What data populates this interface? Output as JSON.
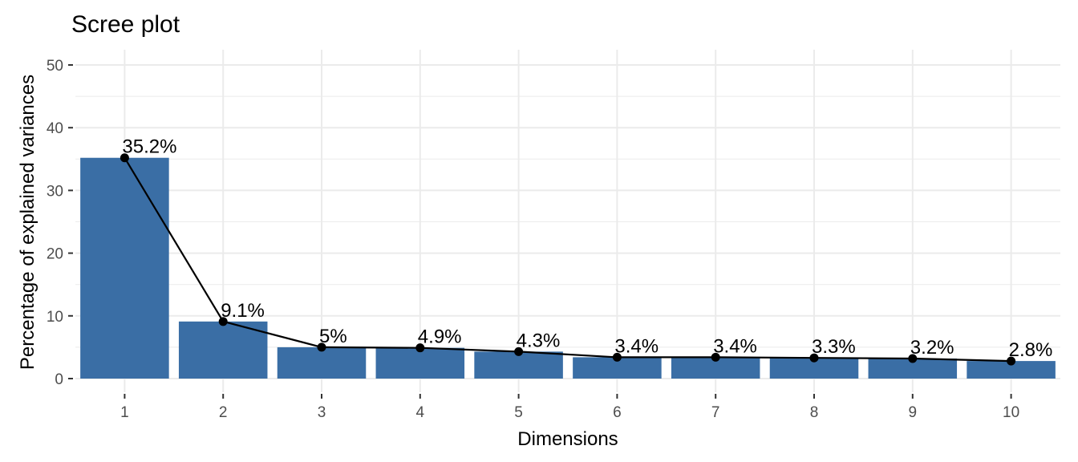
{
  "chart_data": {
    "type": "bar",
    "title": "Scree plot",
    "xlabel": "Dimensions",
    "ylabel": "Percentage of explained variances",
    "categories": [
      "1",
      "2",
      "3",
      "4",
      "5",
      "6",
      "7",
      "8",
      "9",
      "10"
    ],
    "values": [
      35.2,
      9.1,
      5,
      4.9,
      4.3,
      3.4,
      3.4,
      3.3,
      3.2,
      2.8
    ],
    "labels": [
      "35.2%",
      "9.1%",
      "5%",
      "4.9%",
      "4.3%",
      "3.4%",
      "3.4%",
      "3.3%",
      "3.2%",
      "2.8%"
    ],
    "ylim": [
      0,
      50
    ],
    "yticks": [
      "0",
      "10",
      "20",
      "30",
      "40",
      "50"
    ],
    "line_overlay": true,
    "grid": true,
    "bar_color": "#3a6ea5",
    "line_color": "#000000"
  }
}
